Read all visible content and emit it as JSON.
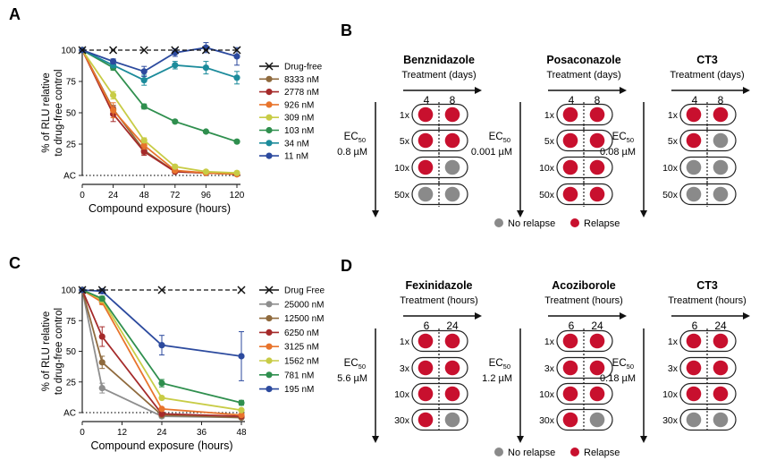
{
  "panels": {
    "A": "A",
    "B": "B",
    "C": "C",
    "D": "D"
  },
  "chart_data": [
    {
      "id": "A",
      "type": "line",
      "xlabel": "Compound exposure (hours)",
      "ylabel_lines": [
        "% of RLU relative",
        "to drug-free control"
      ],
      "x": [
        0,
        24,
        48,
        72,
        96,
        120
      ],
      "xticks": [
        "0",
        "24",
        "48",
        "72",
        "96",
        "120"
      ],
      "yticks": [
        {
          "v": 100,
          "label": "100"
        },
        {
          "v": 75,
          "label": "75"
        },
        {
          "v": 50,
          "label": "50"
        },
        {
          "v": 25,
          "label": "25"
        },
        {
          "v": 0,
          "label": "AC"
        }
      ],
      "xlim": [
        0,
        120
      ],
      "ylim": [
        0,
        100
      ],
      "series": [
        {
          "name": "Drug-free",
          "color": "#111111",
          "marker": "x",
          "dashed": true,
          "values": [
            100,
            100,
            100,
            100,
            100,
            100
          ],
          "err": [
            0,
            0,
            0,
            0,
            0,
            0
          ]
        },
        {
          "name": "8333 nM",
          "color": "#8f6a3d",
          "values": [
            100,
            53,
            20,
            3,
            2,
            1
          ],
          "err": [
            0,
            3,
            3,
            1,
            1,
            1
          ]
        },
        {
          "name": "2778 nM",
          "color": "#a52a2a",
          "values": [
            100,
            49,
            19,
            3,
            2,
            1
          ],
          "err": [
            0,
            6,
            3,
            1,
            1,
            1
          ]
        },
        {
          "name": "926 nM",
          "color": "#e8742c",
          "values": [
            100,
            52,
            24,
            4,
            2,
            1
          ],
          "err": [
            0,
            6,
            3,
            1,
            1,
            1
          ]
        },
        {
          "name": "309 nM",
          "color": "#c8cc46",
          "values": [
            100,
            64,
            28,
            7,
            3,
            2
          ],
          "err": [
            0,
            3,
            2,
            1,
            1,
            1
          ]
        },
        {
          "name": "103 nM",
          "color": "#2f8f4e",
          "values": [
            100,
            86,
            55,
            43,
            35,
            27
          ],
          "err": [
            0,
            2,
            2,
            1,
            1,
            1
          ]
        },
        {
          "name": "34 nM",
          "color": "#1c8b9b",
          "values": [
            100,
            88,
            76,
            88,
            86,
            78
          ],
          "err": [
            0,
            2,
            4,
            3,
            5,
            5
          ]
        },
        {
          "name": "11 nM",
          "color": "#2c4a9e",
          "values": [
            100,
            91,
            83,
            98,
            102,
            95
          ],
          "err": [
            0,
            2,
            4,
            3,
            4,
            7
          ]
        }
      ]
    },
    {
      "id": "C",
      "type": "line",
      "xlabel": "Compound exposure (hours)",
      "ylabel_lines": [
        "% of RLU relative",
        "to drug-free control"
      ],
      "x": [
        0,
        6,
        24,
        48
      ],
      "xticks": [
        "0",
        "12",
        "24",
        "36",
        "48"
      ],
      "xtick_values": [
        0,
        12,
        24,
        36,
        48
      ],
      "yticks": [
        {
          "v": 100,
          "label": "100"
        },
        {
          "v": 75,
          "label": "75"
        },
        {
          "v": 50,
          "label": "50"
        },
        {
          "v": 25,
          "label": "25"
        },
        {
          "v": 0,
          "label": "AC"
        }
      ],
      "xlim": [
        0,
        48
      ],
      "ylim": [
        0,
        100
      ],
      "series": [
        {
          "name": "Drug Free",
          "color": "#111111",
          "marker": "x",
          "dashed": true,
          "values": [
            100,
            100,
            100,
            100
          ],
          "err": [
            0,
            0,
            0,
            0
          ]
        },
        {
          "name": "25000 nM",
          "color": "#8e8e8e",
          "values": [
            100,
            20,
            -3,
            -4
          ],
          "err": [
            0,
            4,
            1,
            1
          ]
        },
        {
          "name": "12500 nM",
          "color": "#8f6a3d",
          "values": [
            100,
            41,
            -2,
            -4
          ],
          "err": [
            0,
            5,
            1,
            1
          ]
        },
        {
          "name": "6250 nM",
          "color": "#a52a2a",
          "values": [
            100,
            62,
            -1,
            -3
          ],
          "err": [
            0,
            8,
            1,
            1
          ]
        },
        {
          "name": "3125 nM",
          "color": "#e8742c",
          "values": [
            100,
            90,
            3,
            -2
          ],
          "err": [
            0,
            2,
            1,
            1
          ]
        },
        {
          "name": "1562 nM",
          "color": "#c8cc46",
          "values": [
            100,
            92,
            12,
            2
          ],
          "err": [
            0,
            2,
            1,
            1
          ]
        },
        {
          "name": "781 nM",
          "color": "#2f8f4e",
          "values": [
            100,
            93,
            24,
            8
          ],
          "err": [
            0,
            2,
            3,
            2
          ]
        },
        {
          "name": "195 nM",
          "color": "#2c4a9e",
          "values": [
            100,
            99,
            55,
            46
          ],
          "err": [
            0,
            2,
            8,
            20
          ]
        }
      ]
    }
  ],
  "relapse_panels": [
    {
      "id": "B",
      "compounds": [
        {
          "name": "Benznidazole",
          "treatment_label": "Treatment (days)",
          "times": [
            "4",
            "8"
          ],
          "ec50_value": "0.8 µM",
          "rows": [
            {
              "label": "1x",
              "cells": [
                "relapse",
                "relapse"
              ]
            },
            {
              "label": "5x",
              "cells": [
                "relapse",
                "relapse"
              ]
            },
            {
              "label": "10x",
              "cells": [
                "relapse",
                "no_relapse"
              ]
            },
            {
              "label": "50x",
              "cells": [
                "no_relapse",
                "no_relapse"
              ]
            }
          ]
        },
        {
          "name": "Posaconazole",
          "treatment_label": "Treatment (days)",
          "times": [
            "4",
            "8"
          ],
          "ec50_value": "0.001 µM",
          "rows": [
            {
              "label": "1x",
              "cells": [
                "relapse",
                "relapse"
              ]
            },
            {
              "label": "5x",
              "cells": [
                "relapse",
                "relapse"
              ]
            },
            {
              "label": "10x",
              "cells": [
                "relapse",
                "relapse"
              ]
            },
            {
              "label": "50x",
              "cells": [
                "relapse",
                "relapse"
              ]
            }
          ]
        },
        {
          "name": "CT3",
          "treatment_label": "Treatment (days)",
          "times": [
            "4",
            "8"
          ],
          "ec50_value": "0.08 µM",
          "rows": [
            {
              "label": "1x",
              "cells": [
                "relapse",
                "relapse"
              ]
            },
            {
              "label": "5x",
              "cells": [
                "relapse",
                "no_relapse"
              ]
            },
            {
              "label": "10x",
              "cells": [
                "no_relapse",
                "no_relapse"
              ]
            },
            {
              "label": "50x",
              "cells": [
                "no_relapse",
                "no_relapse"
              ]
            }
          ]
        }
      ],
      "legend": {
        "no_relapse": "No relapse",
        "relapse": "Relapse"
      }
    },
    {
      "id": "D",
      "compounds": [
        {
          "name": "Fexinidazole",
          "treatment_label": "Treatment (hours)",
          "times": [
            "6",
            "24"
          ],
          "ec50_value": "5.6 µM",
          "rows": [
            {
              "label": "1x",
              "cells": [
                "relapse",
                "relapse"
              ]
            },
            {
              "label": "3x",
              "cells": [
                "relapse",
                "relapse"
              ]
            },
            {
              "label": "10x",
              "cells": [
                "relapse",
                "relapse"
              ]
            },
            {
              "label": "30x",
              "cells": [
                "relapse",
                "no_relapse"
              ]
            }
          ]
        },
        {
          "name": "Acoziborole",
          "treatment_label": "Treatment (hours)",
          "times": [
            "6",
            "24"
          ],
          "ec50_value": "1.2 µM",
          "rows": [
            {
              "label": "1x",
              "cells": [
                "relapse",
                "relapse"
              ]
            },
            {
              "label": "3x",
              "cells": [
                "relapse",
                "relapse"
              ]
            },
            {
              "label": "10x",
              "cells": [
                "relapse",
                "relapse"
              ]
            },
            {
              "label": "30x",
              "cells": [
                "relapse",
                "no_relapse"
              ]
            }
          ]
        },
        {
          "name": "CT3",
          "treatment_label": "Treatment (hours)",
          "times": [
            "6",
            "24"
          ],
          "ec50_value": "0.18 µM",
          "rows": [
            {
              "label": "1x",
              "cells": [
                "relapse",
                "relapse"
              ]
            },
            {
              "label": "3x",
              "cells": [
                "relapse",
                "relapse"
              ]
            },
            {
              "label": "10x",
              "cells": [
                "relapse",
                "relapse"
              ]
            },
            {
              "label": "30x",
              "cells": [
                "no_relapse",
                "no_relapse"
              ]
            }
          ]
        }
      ],
      "legend": {
        "no_relapse": "No relapse",
        "relapse": "Relapse"
      }
    }
  ],
  "ec50_label": "EC",
  "ec50_sub": "50",
  "colors": {
    "relapse": "#c8102e",
    "no_relapse": "#8a8a8a"
  }
}
